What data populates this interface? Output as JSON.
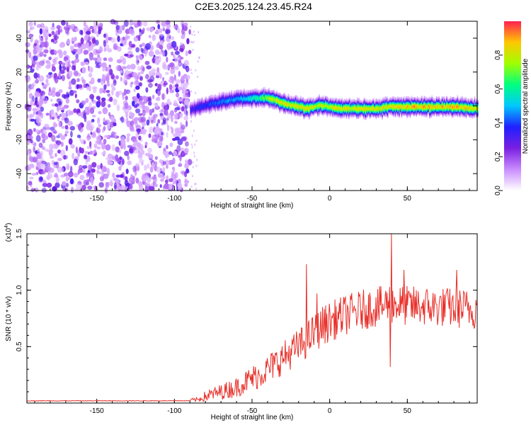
{
  "page_title": "C2E3.2025.124.23.45.R24",
  "chart_data": [
    {
      "type": "heatmap",
      "id": "spectrogram",
      "xlabel": "Height of straight line (km)",
      "ylabel": "Frequency (Hz)",
      "xlim": [
        -195,
        95
      ],
      "ylim": [
        -50,
        50
      ],
      "x_ticks": [
        -150,
        -100,
        -50,
        0,
        50
      ],
      "y_ticks": [
        40,
        20,
        0,
        -20,
        -40
      ],
      "x_tick_labels": [
        "-150",
        "-100",
        "-50",
        "0",
        "50"
      ],
      "y_tick_labels": [
        "40",
        "20",
        "0",
        "-20",
        "-40"
      ],
      "colorbar": {
        "label": "Normalized spectral amplitude",
        "range": [
          0,
          1
        ],
        "ticks": [
          0.0,
          0.2,
          0.4,
          0.6,
          0.8
        ],
        "tick_labels": [
          "0.0",
          "0.2",
          "0.4",
          "0.6",
          "0.8"
        ],
        "colors": [
          "#ffffff",
          "#c98cff",
          "#7a1fe0",
          "#2020ff",
          "#00c8ff",
          "#00ff80",
          "#a0ff00",
          "#ffc800",
          "#ff2050"
        ]
      },
      "noise_region": {
        "x_range": [
          -195,
          -90
        ],
        "amplitude": 0.25
      },
      "ridge": {
        "description_points_x": [
          -90,
          -85,
          -75,
          -65,
          -55,
          -45,
          -38,
          -30,
          -25,
          -20,
          -15,
          -10,
          -5,
          0,
          5,
          10,
          20,
          30,
          40,
          50,
          60,
          70,
          80,
          95
        ],
        "description_points_y": [
          -2,
          0,
          2,
          4,
          5,
          5,
          5,
          2,
          1,
          0,
          -1,
          0,
          1,
          0,
          -1,
          -1,
          -1,
          -1,
          0,
          0,
          0,
          0,
          0,
          -1
        ],
        "peak_amplitude": [
          0.35,
          0.4,
          0.45,
          0.5,
          0.55,
          0.7,
          0.85,
          0.9,
          0.9,
          0.9,
          0.9,
          0.85,
          0.85,
          0.85,
          0.9,
          0.9,
          0.9,
          0.9,
          0.9,
          0.95,
          0.95,
          0.95,
          0.95,
          0.9
        ]
      }
    },
    {
      "type": "line",
      "id": "snr",
      "xlabel": "Height of straight line (km)",
      "ylabel": "SNR (10 * v/v)",
      "y_multiplier_label": "(x10",
      "y_multiplier_exp": "4",
      "y_multiplier_close": ")",
      "xlim": [
        -195,
        95
      ],
      "ylim": [
        0,
        1.5
      ],
      "x_ticks": [
        -150,
        -100,
        -50,
        0,
        50
      ],
      "y_ticks": [
        0.5,
        1.0,
        1.5
      ],
      "x_tick_labels": [
        "-150",
        "-100",
        "-50",
        "0",
        "50"
      ],
      "y_tick_labels": [
        "0.5",
        "1.0",
        "1.5"
      ],
      "series": [
        {
          "color": "#e8302a",
          "x": [
            -195,
            -180,
            -160,
            -140,
            -120,
            -100,
            -85,
            -80,
            -75,
            -70,
            -65,
            -60,
            -55,
            -50,
            -45,
            -40,
            -35,
            -30,
            -25,
            -20,
            -15,
            -12,
            -10,
            -5,
            0,
            5,
            10,
            15,
            20,
            25,
            30,
            35,
            38,
            40,
            45,
            50,
            55,
            60,
            65,
            70,
            75,
            80,
            85,
            90,
            95
          ],
          "y": [
            0.02,
            0.02,
            0.02,
            0.02,
            0.02,
            0.02,
            0.03,
            0.06,
            0.08,
            0.1,
            0.12,
            0.14,
            0.18,
            0.22,
            0.25,
            0.3,
            0.35,
            0.4,
            0.45,
            0.5,
            0.55,
            0.6,
            0.62,
            0.68,
            0.72,
            0.75,
            0.78,
            0.8,
            0.82,
            0.84,
            0.85,
            0.86,
            0.9,
            0.88,
            0.87,
            0.86,
            0.86,
            0.86,
            0.85,
            0.85,
            0.85,
            0.84,
            0.84,
            0.83,
            0.83
          ],
          "noise_amplitude": [
            0.0,
            0.0,
            0.0,
            0.0,
            0.0,
            0.0,
            0.02,
            0.05,
            0.06,
            0.07,
            0.08,
            0.09,
            0.1,
            0.12,
            0.12,
            0.13,
            0.14,
            0.15,
            0.15,
            0.16,
            0.16,
            0.17,
            0.17,
            0.18,
            0.18,
            0.18,
            0.18,
            0.18,
            0.18,
            0.18,
            0.18,
            0.18,
            0.18,
            0.18,
            0.18,
            0.18,
            0.18,
            0.18,
            0.18,
            0.18,
            0.18,
            0.18,
            0.18,
            0.18,
            0.18
          ],
          "spikes": [
            {
              "x": -15,
              "y": 1.23
            },
            {
              "x": -8,
              "y": 0.97
            },
            {
              "x": 40,
              "y": 1.5
            },
            {
              "x": 39,
              "y": 0.32
            },
            {
              "x": 48,
              "y": 1.18
            },
            {
              "x": 82,
              "y": 1.18
            }
          ]
        }
      ]
    }
  ]
}
